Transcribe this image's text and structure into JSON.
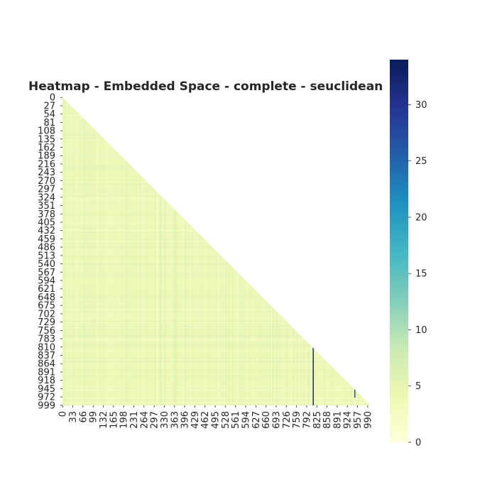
{
  "chart_data": {
    "type": "heatmap",
    "title": "Heatmap - Embedded Space - complete - seuclidean",
    "mask": "upper-triangle",
    "colormap": "YlGnBu",
    "colors": [
      "#ffffd9",
      "#edf8b1",
      "#c7e9b4",
      "#7fcdbb",
      "#41b6c4",
      "#1d91c0",
      "#225ea8",
      "#253494",
      "#081d58"
    ],
    "n": 1000,
    "row_ticks": [
      "0",
      "27",
      "54",
      "81",
      "108",
      "135",
      "162",
      "189",
      "216",
      "243",
      "270",
      "297",
      "324",
      "351",
      "378",
      "405",
      "432",
      "459",
      "486",
      "513",
      "540",
      "567",
      "594",
      "621",
      "648",
      "675",
      "702",
      "729",
      "756",
      "783",
      "810",
      "837",
      "864",
      "891",
      "918",
      "945",
      "972",
      "999"
    ],
    "col_ticks": [
      "0",
      "33",
      "66",
      "99",
      "132",
      "165",
      "198",
      "231",
      "264",
      "297",
      "330",
      "363",
      "396",
      "429",
      "462",
      "495",
      "528",
      "561",
      "594",
      "627",
      "660",
      "693",
      "726",
      "759",
      "792",
      "825",
      "858",
      "891",
      "924",
      "957",
      "990"
    ],
    "colorbar": {
      "vmin": 0,
      "vmax": 34,
      "ticks": [
        "0",
        "5",
        "10",
        "15",
        "20",
        "25",
        "30"
      ]
    },
    "typical_value_range": [
      2,
      8
    ],
    "outlier_cells": [
      {
        "col": 812,
        "rows": [
          810,
          1000
        ],
        "value": 30
      },
      {
        "col": 947,
        "rows": [
          945,
          975
        ],
        "value": 26
      }
    ]
  }
}
